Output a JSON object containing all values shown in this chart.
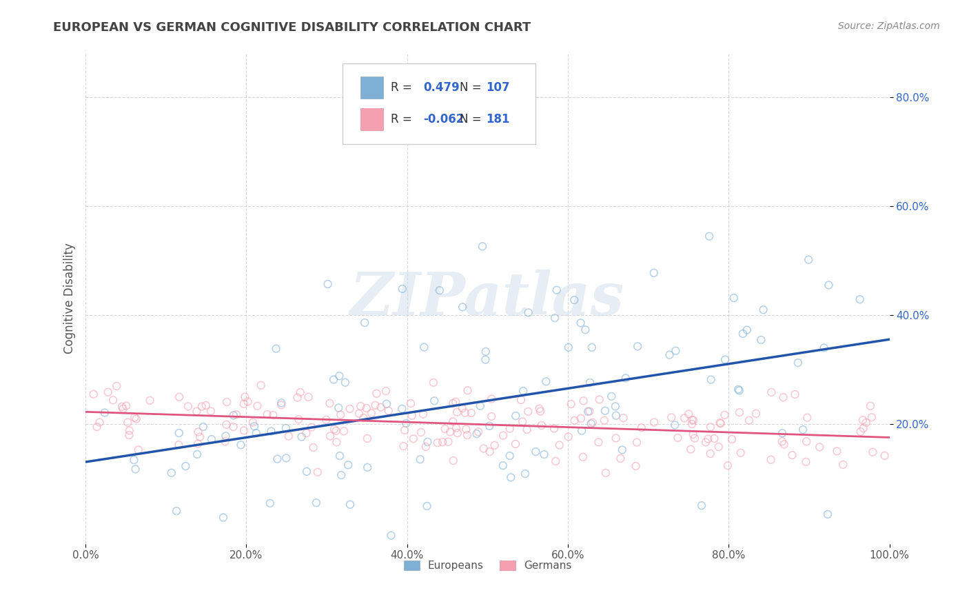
{
  "title": "EUROPEAN VS GERMAN COGNITIVE DISABILITY CORRELATION CHART",
  "source_text": "Source: ZipAtlas.com",
  "ylabel": "Cognitive Disability",
  "xlabel": "",
  "xlim": [
    0.0,
    1.0
  ],
  "ylim": [
    -0.02,
    0.88
  ],
  "x_ticks": [
    0.0,
    0.2,
    0.4,
    0.6,
    0.8,
    1.0
  ],
  "x_tick_labels": [
    "0.0%",
    "20.0%",
    "40.0%",
    "60.0%",
    "80.0%",
    "100.0%"
  ],
  "y_ticks": [
    0.2,
    0.4,
    0.6,
    0.8
  ],
  "y_tick_labels": [
    "20.0%",
    "40.0%",
    "60.0%",
    "80.0%"
  ],
  "legend_label1": "Europeans",
  "legend_label2": "Germans",
  "R1": "0.479",
  "N1": "107",
  "R2": "-0.062",
  "N2": "181",
  "color_blue": "#7EB0D5",
  "color_pink": "#F4A0B0",
  "color_blue_line": "#2255AA",
  "color_pink_line": "#E05580",
  "color_text_blue": "#3366CC",
  "watermark": "ZIPatlas",
  "background_color": "#FFFFFF",
  "grid_color": "#CCCCCC",
  "title_color": "#444444",
  "scatter_alpha": 0.55,
  "scatter_size": 60,
  "eu_line_x0": 0.0,
  "eu_line_y0": 0.13,
  "eu_line_x1": 1.0,
  "eu_line_y1": 0.355,
  "de_line_x0": 0.0,
  "de_line_y0": 0.222,
  "de_line_x1": 1.0,
  "de_line_y1": 0.175
}
